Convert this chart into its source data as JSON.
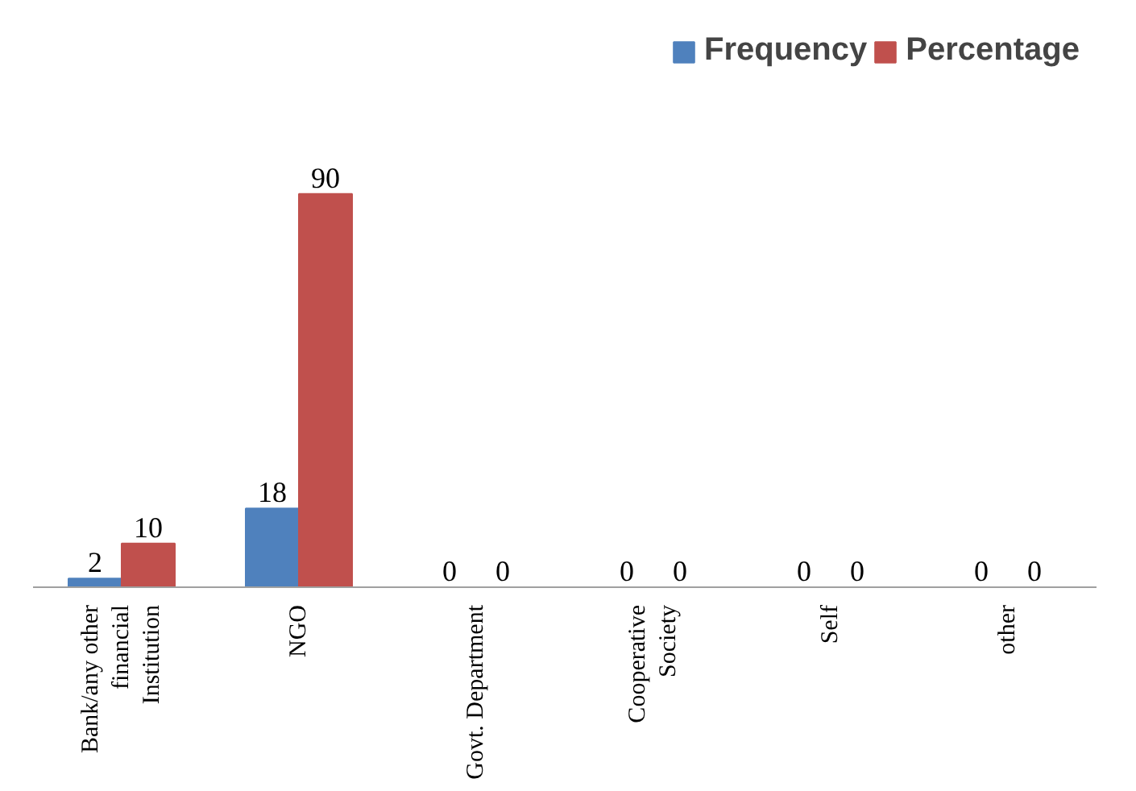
{
  "chart_data": {
    "type": "bar",
    "categories": [
      "Bank/any other financial Institution",
      "NGO",
      "Govt. Department",
      "Cooperative Society",
      "Self",
      "other"
    ],
    "series": [
      {
        "name": "Frequency",
        "color": "#4f81bd",
        "values": [
          2,
          18,
          0,
          0,
          0,
          0
        ]
      },
      {
        "name": "Percentage",
        "color": "#c0504d",
        "values": [
          10,
          90,
          0,
          0,
          0,
          0
        ]
      }
    ],
    "data_labels": true,
    "legend": "top right",
    "grid": false
  }
}
